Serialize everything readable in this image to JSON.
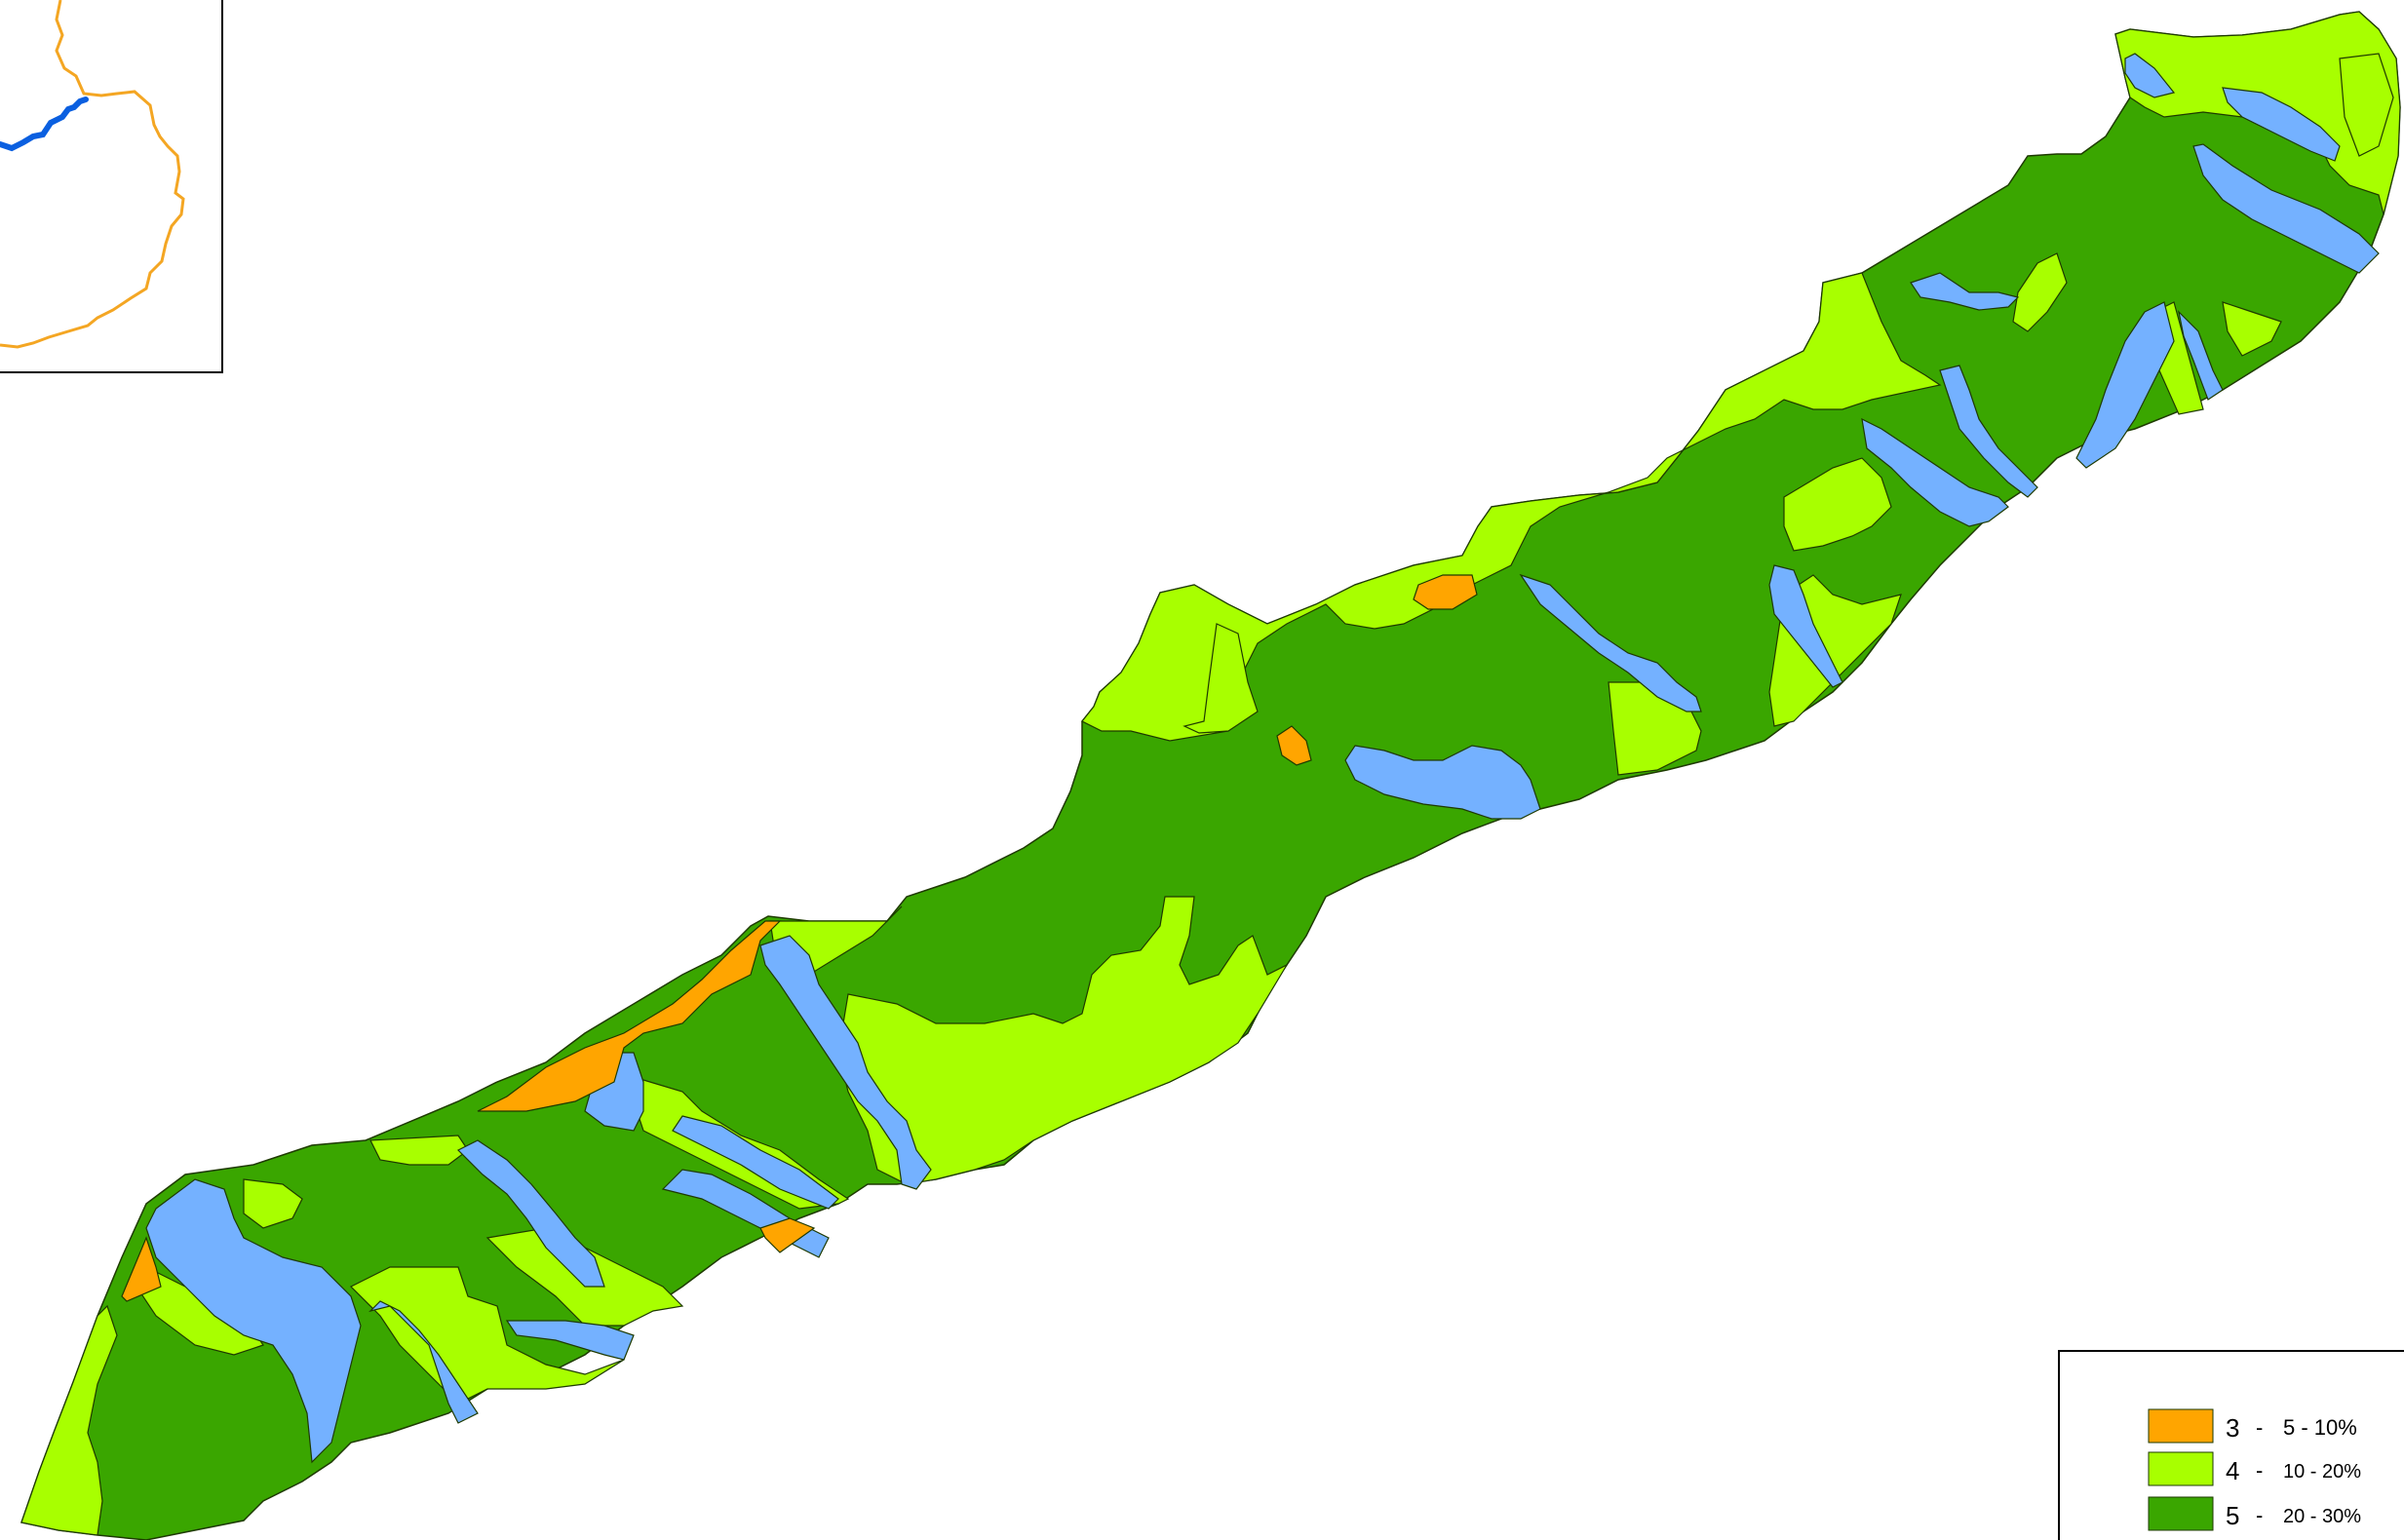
{
  "map": {
    "colors": {
      "class3": "#FFA500",
      "class4": "#A8FF00",
      "class5": "#3AA600",
      "water": "#74B1FF",
      "inset_boundary": "#F4A623",
      "inset_river": "#0A5FE0",
      "outline": "#000000"
    }
  },
  "legend": {
    "items": [
      {
        "code": "3",
        "sep": "-",
        "range": "5 - 10%",
        "color": "#FFA500"
      },
      {
        "code": "4",
        "sep": "-",
        "range": "10 - 20%",
        "color": "#A8FF00"
      },
      {
        "code": "5",
        "sep": "-",
        "range": "20 - 30%",
        "color": "#3AA600"
      }
    ]
  }
}
